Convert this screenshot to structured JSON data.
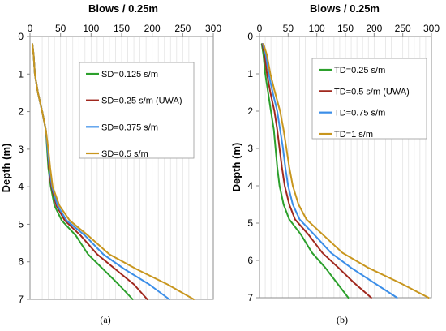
{
  "chart_data": [
    {
      "type": "line",
      "panel_label": "(a)",
      "xlabel": "Blows / 0.25m",
      "ylabel": "Depth (m)",
      "xlim": [
        0,
        300
      ],
      "ylim": [
        0,
        7
      ],
      "x_ticks": [
        0,
        50,
        100,
        150,
        200,
        250,
        300
      ],
      "y_ticks": [
        0,
        1,
        2,
        3,
        4,
        5,
        6,
        7
      ],
      "x_axis_position": "top",
      "y_inverted": true,
      "grid": "vertical minor",
      "legend_position": "top-right",
      "series": [
        {
          "name": "SD=0.125 s/m",
          "color": "#2ca02c",
          "points": [
            [
              4,
              0.2
            ],
            [
              6,
              0.5
            ],
            [
              8,
              1
            ],
            [
              13,
              1.5
            ],
            [
              20,
              2
            ],
            [
              26,
              2.5
            ],
            [
              28,
              3
            ],
            [
              30,
              3.5
            ],
            [
              34,
              4
            ],
            [
              40,
              4.5
            ],
            [
              52,
              4.9
            ],
            [
              75,
              5.3
            ],
            [
              95,
              5.8
            ],
            [
              120,
              6.2
            ],
            [
              145,
              6.6
            ],
            [
              168,
              7
            ]
          ]
        },
        {
          "name": "SD=0.25 s/m (UWA)",
          "color": "#a0281e",
          "points": [
            [
              4,
              0.2
            ],
            [
              6,
              0.5
            ],
            [
              8,
              1
            ],
            [
              13,
              1.5
            ],
            [
              20,
              2
            ],
            [
              26,
              2.5
            ],
            [
              29,
              3
            ],
            [
              31,
              3.5
            ],
            [
              35,
              4
            ],
            [
              43,
              4.5
            ],
            [
              57,
              4.9
            ],
            [
              83,
              5.3
            ],
            [
              110,
              5.8
            ],
            [
              140,
              6.2
            ],
            [
              170,
              6.6
            ],
            [
              192,
              7
            ]
          ]
        },
        {
          "name": "SD=0.375 s/m",
          "color": "#3b8ee8",
          "points": [
            [
              4,
              0.2
            ],
            [
              6,
              0.5
            ],
            [
              8,
              1
            ],
            [
              13,
              1.5
            ],
            [
              20,
              2
            ],
            [
              26,
              2.5
            ],
            [
              29,
              3
            ],
            [
              32,
              3.5
            ],
            [
              36,
              4
            ],
            [
              45,
              4.5
            ],
            [
              60,
              4.9
            ],
            [
              90,
              5.3
            ],
            [
              120,
              5.8
            ],
            [
              155,
              6.2
            ],
            [
              195,
              6.6
            ],
            [
              228,
              7
            ]
          ]
        },
        {
          "name": "SD=0.5 s/m",
          "color": "#c8961e",
          "points": [
            [
              4,
              0.2
            ],
            [
              6,
              0.5
            ],
            [
              8,
              1
            ],
            [
              13,
              1.5
            ],
            [
              20,
              2
            ],
            [
              26,
              2.5
            ],
            [
              30,
              3
            ],
            [
              33,
              3.5
            ],
            [
              37,
              4
            ],
            [
              48,
              4.5
            ],
            [
              65,
              4.9
            ],
            [
              95,
              5.3
            ],
            [
              130,
              5.8
            ],
            [
              175,
              6.2
            ],
            [
              225,
              6.6
            ],
            [
              268,
              7
            ]
          ]
        }
      ]
    },
    {
      "type": "line",
      "panel_label": "(b)",
      "xlabel": "Blows / 0.25m",
      "ylabel": "Depth (m)",
      "xlim": [
        0,
        300
      ],
      "ylim": [
        0,
        7
      ],
      "x_ticks": [
        0,
        50,
        100,
        150,
        200,
        250,
        300
      ],
      "y_ticks": [
        0,
        1,
        2,
        3,
        4,
        5,
        6,
        7
      ],
      "x_axis_position": "top",
      "y_inverted": true,
      "grid": "vertical minor",
      "legend_position": "top-right",
      "series": [
        {
          "name": "TD=0.25 s/m",
          "color": "#2ca02c",
          "points": [
            [
              4,
              0.2
            ],
            [
              7,
              0.5
            ],
            [
              10,
              1
            ],
            [
              15,
              1.5
            ],
            [
              20,
              2
            ],
            [
              25,
              2.5
            ],
            [
              28,
              3
            ],
            [
              31,
              3.5
            ],
            [
              35,
              4
            ],
            [
              42,
              4.5
            ],
            [
              52,
              4.9
            ],
            [
              72,
              5.3
            ],
            [
              92,
              5.8
            ],
            [
              115,
              6.2
            ],
            [
              135,
              6.6
            ],
            [
              155,
              7
            ]
          ]
        },
        {
          "name": "TD=0.5 s/m (UWA)",
          "color": "#a0281e",
          "points": [
            [
              5,
              0.2
            ],
            [
              9,
              0.5
            ],
            [
              13,
              1
            ],
            [
              19,
              1.5
            ],
            [
              26,
              2
            ],
            [
              31,
              2.5
            ],
            [
              35,
              3
            ],
            [
              39,
              3.5
            ],
            [
              44,
              4
            ],
            [
              52,
              4.5
            ],
            [
              62,
              4.9
            ],
            [
              85,
              5.3
            ],
            [
              110,
              5.8
            ],
            [
              138,
              6.2
            ],
            [
              165,
              6.6
            ],
            [
              195,
              7
            ]
          ]
        },
        {
          "name": "TD=0.75 s/m",
          "color": "#3b8ee8",
          "points": [
            [
              6,
              0.2
            ],
            [
              11,
              0.5
            ],
            [
              16,
              1
            ],
            [
              23,
              1.5
            ],
            [
              31,
              2
            ],
            [
              36,
              2.5
            ],
            [
              41,
              3
            ],
            [
              45,
              3.5
            ],
            [
              50,
              4
            ],
            [
              58,
              4.5
            ],
            [
              70,
              4.9
            ],
            [
              95,
              5.3
            ],
            [
              125,
              5.8
            ],
            [
              160,
              6.2
            ],
            [
              200,
              6.6
            ],
            [
              240,
              7
            ]
          ]
        },
        {
          "name": "TD=1 s/m",
          "color": "#c8961e",
          "points": [
            [
              7,
              0.2
            ],
            [
              13,
              0.5
            ],
            [
              19,
              1
            ],
            [
              27,
              1.5
            ],
            [
              36,
              2
            ],
            [
              42,
              2.5
            ],
            [
              47,
              3
            ],
            [
              52,
              3.5
            ],
            [
              58,
              4
            ],
            [
              68,
              4.5
            ],
            [
              82,
              4.9
            ],
            [
              110,
              5.3
            ],
            [
              145,
              5.8
            ],
            [
              190,
              6.2
            ],
            [
              245,
              6.6
            ],
            [
              295,
              7
            ]
          ]
        }
      ]
    }
  ]
}
